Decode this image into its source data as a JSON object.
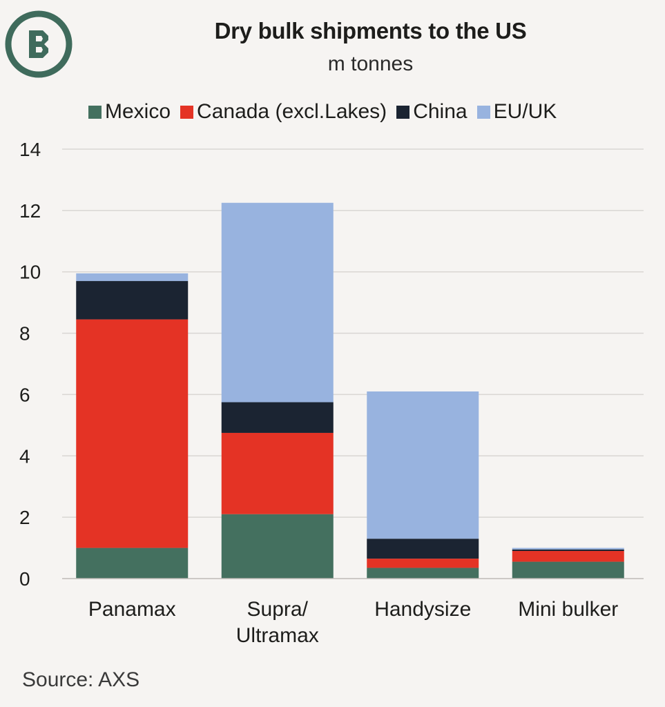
{
  "header": {
    "title": "Dry bulk shipments to the US",
    "subtitle": "m tonnes"
  },
  "logo": {
    "icon": "b-circle-logo-icon",
    "color": "#3f6b5c"
  },
  "legend": {
    "position": "top",
    "items": [
      {
        "label": "Mexico",
        "color": "#44705f"
      },
      {
        "label": "Canada (excl.Lakes)",
        "color": "#e43325"
      },
      {
        "label": "China",
        "color": "#1b2432"
      },
      {
        "label": "EU/UK",
        "color": "#98b3df"
      }
    ]
  },
  "chart_data": {
    "type": "bar",
    "stacked": true,
    "categories": [
      "Panamax",
      "Supra/ Ultramax",
      "Handysize",
      "Mini bulker"
    ],
    "category_lines": [
      [
        "Panamax"
      ],
      [
        "Supra/",
        "Ultramax"
      ],
      [
        "Handysize"
      ],
      [
        "Mini bulker"
      ]
    ],
    "series": [
      {
        "name": "Mexico",
        "color": "#44705f",
        "values": [
          1.0,
          2.1,
          0.35,
          0.55
        ]
      },
      {
        "name": "Canada (excl.Lakes)",
        "color": "#e43325",
        "values": [
          7.45,
          2.65,
          0.3,
          0.35
        ]
      },
      {
        "name": "China",
        "color": "#1b2432",
        "values": [
          1.25,
          1.0,
          0.65,
          0.05
        ]
      },
      {
        "name": "EU/UK",
        "color": "#98b3df",
        "values": [
          0.25,
          6.5,
          4.8,
          0.05
        ]
      }
    ],
    "ylim": [
      0,
      14
    ],
    "yticks": [
      0,
      2,
      4,
      6,
      8,
      10,
      12,
      14
    ],
    "grid": true,
    "xlabel": "",
    "ylabel": ""
  },
  "footer": {
    "source": "Source: AXS"
  }
}
